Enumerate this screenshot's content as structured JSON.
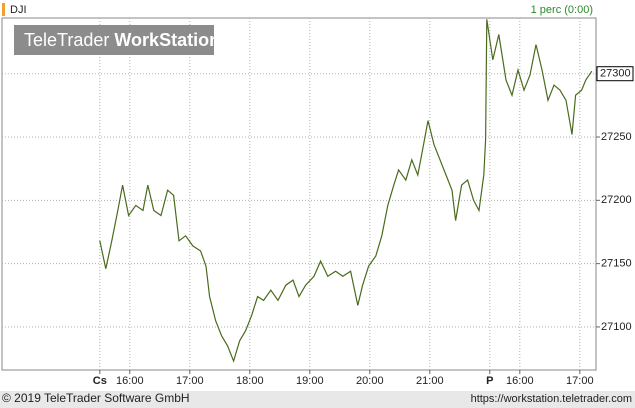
{
  "chart_data": {
    "type": "line",
    "symbol": "DJI",
    "interval": "1 perc (0:00)",
    "logo": [
      "TeleTrader",
      "WorkStation"
    ],
    "footer_left": "© 2019 TeleTrader Software GmbH",
    "footer_right": "https://workstation.teletrader.com",
    "last_price": 27300,
    "color": "#4a6b1e",
    "grid": true,
    "xlim": [
      13.87,
      23.77
    ],
    "ylim": [
      27066,
      27344
    ],
    "yticks": [
      27100,
      27150,
      27200,
      27250,
      27300
    ],
    "xticks": [
      {
        "value": 15.5,
        "label": "Cs"
      },
      {
        "value": 16,
        "label": "16:00"
      },
      {
        "value": 17,
        "label": "17:00"
      },
      {
        "value": 18,
        "label": "18:00"
      },
      {
        "value": 19,
        "label": "19:00"
      },
      {
        "value": 20,
        "label": "20:00"
      },
      {
        "value": 21,
        "label": "21:00"
      },
      {
        "value": 22,
        "label": "P"
      },
      {
        "value": 22.5,
        "label": "16:00"
      },
      {
        "value": 23.5,
        "label": "17:00"
      }
    ],
    "x": [
      15.5,
      15.6,
      15.7,
      15.8,
      15.88,
      15.98,
      16.1,
      16.22,
      16.3,
      16.4,
      16.52,
      16.63,
      16.73,
      16.82,
      16.93,
      17.05,
      17.18,
      17.27,
      17.33,
      17.43,
      17.53,
      17.63,
      17.73,
      17.83,
      17.93,
      18.03,
      18.13,
      18.23,
      18.35,
      18.47,
      18.6,
      18.72,
      18.82,
      18.93,
      19.07,
      19.18,
      19.3,
      19.43,
      19.55,
      19.68,
      19.8,
      19.88,
      19.98,
      20.1,
      20.2,
      20.3,
      20.4,
      20.48,
      20.6,
      20.7,
      20.8,
      20.88,
      20.97,
      21.07,
      21.17,
      21.27,
      21.37,
      21.43,
      21.53,
      21.63,
      21.73,
      21.82,
      21.9,
      21.93,
      21.95,
      22.05,
      22.15,
      22.27,
      22.37,
      22.47,
      22.57,
      22.67,
      22.77,
      22.87,
      22.97,
      23.07,
      23.17,
      23.27,
      23.37,
      23.43,
      23.53,
      23.6,
      23.7
    ],
    "values": [
      27168,
      27146,
      27168,
      27192,
      27212,
      27188,
      27196,
      27192,
      27212,
      27192,
      27188,
      27208,
      27204,
      27168,
      27172,
      27164,
      27160,
      27148,
      27124,
      27105,
      27093,
      27085,
      27073,
      27089,
      27097,
      27109,
      27124,
      27121,
      27129,
      27121,
      27133,
      27137,
      27124,
      27133,
      27140,
      27152,
      27140,
      27144,
      27140,
      27144,
      27117,
      27133,
      27148,
      27156,
      27172,
      27196,
      27212,
      27224,
      27216,
      27232,
      27220,
      27240,
      27263,
      27244,
      27232,
      27220,
      27208,
      27184,
      27212,
      27216,
      27200,
      27192,
      27220,
      27248,
      27343,
      27311,
      27331,
      27295,
      27283,
      27303,
      27287,
      27299,
      27323,
      27303,
      27279,
      27291,
      27287,
      27279,
      27252,
      27283,
      27287,
      27295,
      27302
    ]
  }
}
